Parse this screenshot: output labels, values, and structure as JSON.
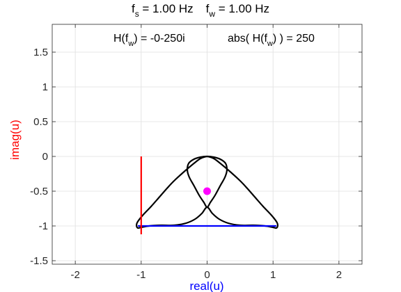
{
  "title": {
    "fs_sym": "f",
    "fs_sub": "s",
    "fs_rest": " = 1.00  Hz",
    "fw_sym": "f",
    "fw_sub": "w",
    "fw_rest": " = 1.00  Hz"
  },
  "annotation": {
    "h_pre": "H(f",
    "h_sub": "w",
    "h_post": ")  =  -0-250i",
    "abs_pre": "abs( H(f",
    "abs_sub": "w",
    "abs_post": ") )  =  250"
  },
  "chart_data": {
    "type": "line",
    "xlabel": "real(u)",
    "ylabel": "imag(u)",
    "xlim": [
      -2.35,
      2.35
    ],
    "ylim": [
      -1.55,
      1.9
    ],
    "xticks": [
      -2,
      -1,
      0,
      1,
      2
    ],
    "yticks": [
      -1.5,
      -1,
      -0.5,
      0,
      0.5,
      1,
      1.5
    ],
    "xtick_labels": [
      "-2",
      "-1",
      "0",
      "1",
      "2"
    ],
    "ytick_labels": [
      "-1.5",
      "-1",
      "-0.5",
      "0",
      "0.5",
      "1",
      "1.5"
    ],
    "grid": true,
    "colors": {
      "curve": "#000000",
      "real_axis_segment": "#0000ff",
      "imag_axis_segment": "#ff0000",
      "centroid": "#ff00ff",
      "ylabel": "#ff0000",
      "xlabel": "#0000ff"
    },
    "curve": {
      "x": [
        0.0,
        0.1,
        0.2,
        0.35,
        0.5,
        0.6,
        0.72,
        0.85,
        0.98,
        1.06,
        1.07,
        1.05,
        1.0,
        0.88,
        0.7,
        0.5,
        0.32,
        0.18,
        0.08,
        0.0,
        -0.08,
        -0.18,
        -0.32,
        -0.5,
        -0.7,
        -0.88,
        -1.0,
        -1.05,
        -1.07,
        -1.06,
        -0.98,
        -0.85,
        -0.72,
        -0.6,
        -0.5,
        -0.35,
        -0.2,
        -0.1,
        0.0,
        0.1,
        0.2,
        0.28,
        0.3,
        0.27,
        0.2,
        0.12,
        0.05,
        0.0,
        -0.05,
        -0.12,
        -0.2,
        -0.27,
        -0.3,
        -0.28,
        -0.2,
        -0.1,
        0.0
      ],
      "y": [
        0.0,
        -0.03,
        -0.1,
        -0.22,
        -0.35,
        -0.45,
        -0.58,
        -0.72,
        -0.85,
        -0.95,
        -1.0,
        -1.03,
        -1.02,
        -1.0,
        -0.99,
        -0.99,
        -0.96,
        -0.9,
        -0.82,
        -0.73,
        -0.82,
        -0.9,
        -0.96,
        -0.99,
        -0.99,
        -1.0,
        -1.02,
        -1.03,
        -1.0,
        -0.95,
        -0.85,
        -0.72,
        -0.58,
        -0.45,
        -0.35,
        -0.22,
        -0.1,
        -0.03,
        0.0,
        -0.01,
        -0.04,
        -0.1,
        -0.2,
        -0.3,
        -0.42,
        -0.56,
        -0.66,
        -0.73,
        -0.66,
        -0.56,
        -0.42,
        -0.3,
        -0.2,
        -0.1,
        -0.04,
        -0.01,
        0.0
      ]
    },
    "real_axis_segment": {
      "x": [
        -1.05,
        1.05
      ],
      "y": [
        -1,
        -1
      ]
    },
    "imag_axis_segment": {
      "x": [
        -1,
        -1
      ],
      "y": [
        0,
        -1.12
      ]
    },
    "centroid": {
      "x": 0.0,
      "y": -0.5
    }
  }
}
